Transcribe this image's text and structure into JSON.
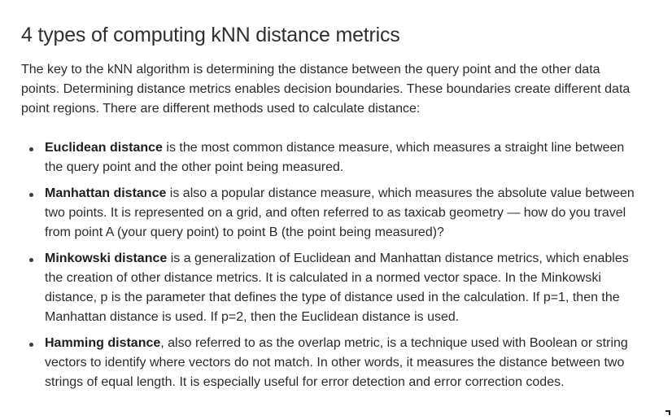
{
  "article": {
    "heading": "4 types of computing kNN distance metrics",
    "intro": "The key to the kNN algorithm is determining the distance between the query point and the other data points. Determining distance metrics enables decision boundaries. These boundaries create different data point regions. There are different methods used to calculate distance:",
    "metrics": [
      {
        "term": "Euclidean distance",
        "description": " is the most common distance measure, which measures a straight line between the query point and the other point being measured."
      },
      {
        "term": "Manhattan distance",
        "description": " is also a popular distance measure, which measures the absolute value between two points. It is represented on a grid, and often referred to as taxicab geometry — how do you travel from point A (your query point) to point B (the point being measured)?"
      },
      {
        "term": "Minkowski distance",
        "description": " is a generalization of Euclidean and Manhattan distance metrics, which enables the creation of other distance metrics. It is calculated in a normed vector space. In the Minkowski distance, p is the parameter that defines the type of distance used in the calculation. If p=1, then the Manhattan distance is used. If p=2, then the Euclidean distance is used."
      },
      {
        "term": "Hamming distance",
        "description": ", also referred to as the overlap metric, is a technique used with Boolean or string vectors to identify where vectors do not match. In other words, it measures the distance between two strings of equal length. It is especially useful for error detection and error correction codes."
      }
    ]
  }
}
